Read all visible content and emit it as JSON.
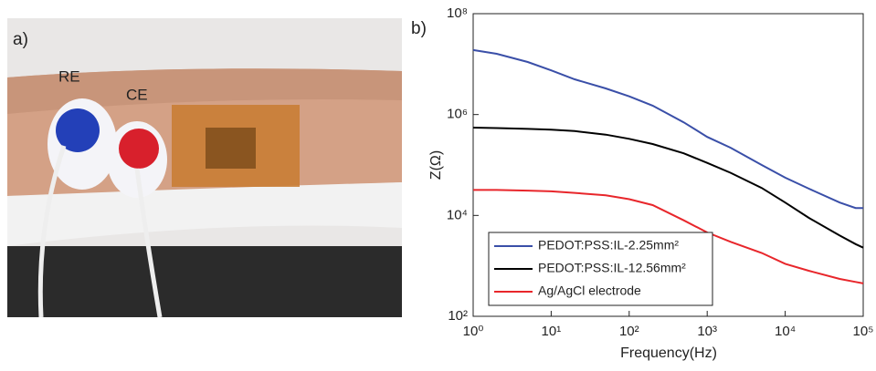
{
  "photo": {
    "panel_label": "a)",
    "labels": [
      "RE",
      "CE"
    ]
  },
  "chart_data": {
    "type": "line",
    "panel_label": "b)",
    "xlabel": "Frequency(Hz)",
    "ylabel": "Z(Ω)",
    "xscale": "log",
    "yscale": "log",
    "legend": "lower left",
    "x": [
      1,
      2,
      5,
      10,
      20,
      50,
      100,
      200,
      500,
      1000,
      2000,
      5000,
      10000,
      20000,
      50000,
      80000,
      100000
    ],
    "series": [
      {
        "name": "PEDOT:PSS:IL-2.25mm²",
        "color": "#3a4fa8",
        "values": [
          19000000,
          16000000,
          11000000,
          7500000,
          5000000,
          3300000,
          2300000,
          1500000,
          700000,
          360000,
          220000,
          100000,
          56000,
          34000,
          18000,
          14000,
          14000
        ]
      },
      {
        "name": "PEDOT:PSS:IL-12.56mm²",
        "color": "#000000",
        "values": [
          550000,
          540000,
          520000,
          500000,
          470000,
          400000,
          330000,
          260000,
          170000,
          110000,
          70000,
          35000,
          18000,
          9000,
          4000,
          2700,
          2300
        ]
      },
      {
        "name": "Ag/AgCl electrode",
        "color": "#e8262b",
        "values": [
          32000,
          32000,
          31000,
          30000,
          28000,
          25000,
          21000,
          16000,
          8000,
          4600,
          3000,
          1800,
          1100,
          800,
          550,
          480,
          450
        ]
      }
    ],
    "xlim": [
      1,
      100000
    ],
    "xticks": [
      {
        "value": 1,
        "label": "10⁰"
      },
      {
        "value": 10,
        "label": "10¹"
      },
      {
        "value": 100,
        "label": "10²"
      },
      {
        "value": 1000,
        "label": "10³"
      },
      {
        "value": 10000,
        "label": "10⁴"
      },
      {
        "value": 100000,
        "label": "10⁵"
      }
    ],
    "ylim": [
      100,
      100000000
    ],
    "yticks": [
      {
        "value": 100,
        "label": "10²"
      },
      {
        "value": 10000,
        "label": "10⁴"
      },
      {
        "value": 1000000,
        "label": "10⁶"
      },
      {
        "value": 100000000,
        "label": "10⁸"
      }
    ]
  }
}
